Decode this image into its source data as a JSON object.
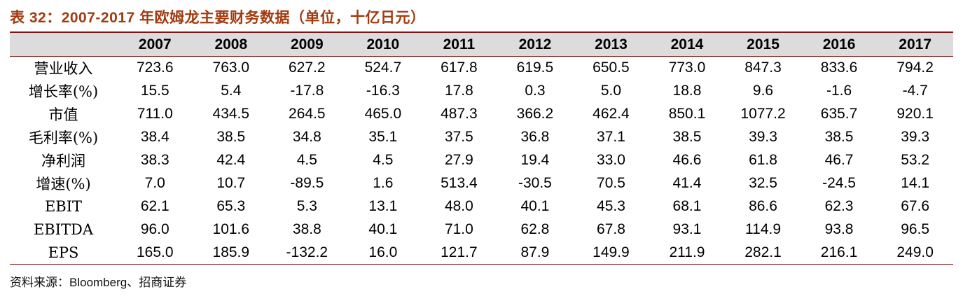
{
  "page": {
    "title": "表 32：2007-2017 年欧姆龙主要财务数据（单位，十亿日元）",
    "source": "资料来源：Bloomberg、招商证券"
  },
  "colors": {
    "title": "#A23B10",
    "table_border": "#7E1518",
    "header_bg": "#DCDCDC",
    "text": "#000000"
  },
  "table": {
    "label_column_header": "",
    "year_columns": [
      "2007",
      "2008",
      "2009",
      "2010",
      "2011",
      "2012",
      "2013",
      "2014",
      "2015",
      "2016",
      "2017"
    ],
    "rows": [
      {
        "label": "营业收入",
        "values": [
          "723.6",
          "763.0",
          "627.2",
          "524.7",
          "617.8",
          "619.5",
          "650.5",
          "773.0",
          "847.3",
          "833.6",
          "794.2"
        ]
      },
      {
        "label": "增长率(%)",
        "values": [
          "15.5",
          "5.4",
          "-17.8",
          "-16.3",
          "17.8",
          "0.3",
          "5.0",
          "18.8",
          "9.6",
          "-1.6",
          "-4.7"
        ]
      },
      {
        "label": "市值",
        "values": [
          "711.0",
          "434.5",
          "264.5",
          "465.0",
          "487.3",
          "366.2",
          "462.4",
          "850.1",
          "1077.2",
          "635.7",
          "920.1"
        ]
      },
      {
        "label": "毛利率(%)",
        "values": [
          "38.4",
          "38.5",
          "34.8",
          "35.1",
          "37.5",
          "36.8",
          "37.1",
          "38.5",
          "39.3",
          "38.5",
          "39.3"
        ]
      },
      {
        "label": "净利润",
        "values": [
          "38.3",
          "42.4",
          "4.5",
          "4.5",
          "27.9",
          "19.4",
          "33.0",
          "46.6",
          "61.8",
          "46.7",
          "53.2"
        ]
      },
      {
        "label": "增速(%)",
        "values": [
          "7.0",
          "10.7",
          "-89.5",
          "1.6",
          "513.4",
          "-30.5",
          "70.5",
          "41.4",
          "32.5",
          "-24.5",
          "14.1"
        ]
      },
      {
        "label": "EBIT",
        "values": [
          "62.1",
          "65.3",
          "5.3",
          "13.1",
          "48.0",
          "40.1",
          "45.3",
          "68.1",
          "86.6",
          "62.3",
          "67.6"
        ]
      },
      {
        "label": "EBITDA",
        "values": [
          "96.0",
          "101.6",
          "38.8",
          "40.1",
          "71.0",
          "62.8",
          "67.8",
          "93.1",
          "114.9",
          "93.8",
          "96.5"
        ]
      },
      {
        "label": "EPS",
        "values": [
          "165.0",
          "185.9",
          "-132.2",
          "16.0",
          "121.7",
          "87.9",
          "149.9",
          "211.9",
          "282.1",
          "216.1",
          "249.0"
        ]
      }
    ]
  }
}
